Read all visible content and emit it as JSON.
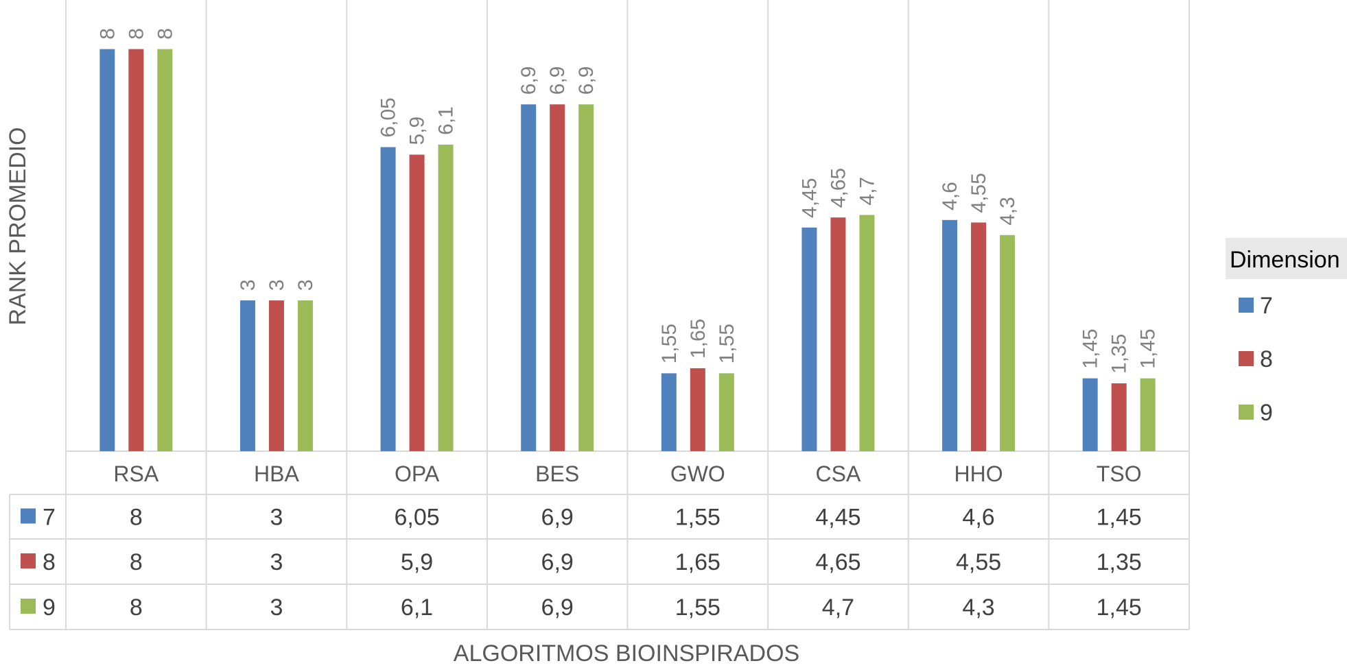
{
  "chart_data": {
    "type": "bar",
    "categories": [
      "RSA",
      "HBA",
      "OPA",
      "BES",
      "GWO",
      "CSA",
      "HHO",
      "TSO"
    ],
    "series": [
      {
        "name": "7",
        "color": "#4f81bd",
        "values": [
          8,
          3,
          6.05,
          6.9,
          1.55,
          4.45,
          4.6,
          1.45
        ],
        "labels": [
          "8",
          "3",
          "6,05",
          "6,9",
          "1,55",
          "4,45",
          "4,6",
          "1,45"
        ]
      },
      {
        "name": "8",
        "color": "#c0504d",
        "values": [
          8,
          3,
          5.9,
          6.9,
          1.65,
          4.65,
          4.55,
          1.35
        ],
        "labels": [
          "8",
          "3",
          "5,9",
          "6,9",
          "1,65",
          "4,65",
          "4,55",
          "1,35"
        ]
      },
      {
        "name": "9",
        "color": "#9bbb59",
        "values": [
          8,
          3,
          6.1,
          6.9,
          1.55,
          4.7,
          4.3,
          1.45
        ],
        "labels": [
          "8",
          "3",
          "6,1",
          "6,9",
          "1,55",
          "4,7",
          "4,3",
          "1,45"
        ]
      }
    ],
    "title": "",
    "xlabel": "ALGORITMOS BIOINSPIRADOS",
    "ylabel": "RANK PROMEDIO",
    "ylim": [
      0,
      9
    ],
    "grid": "vertical",
    "legend_title": "Dimension",
    "legend_position": "right",
    "data_table": true
  }
}
